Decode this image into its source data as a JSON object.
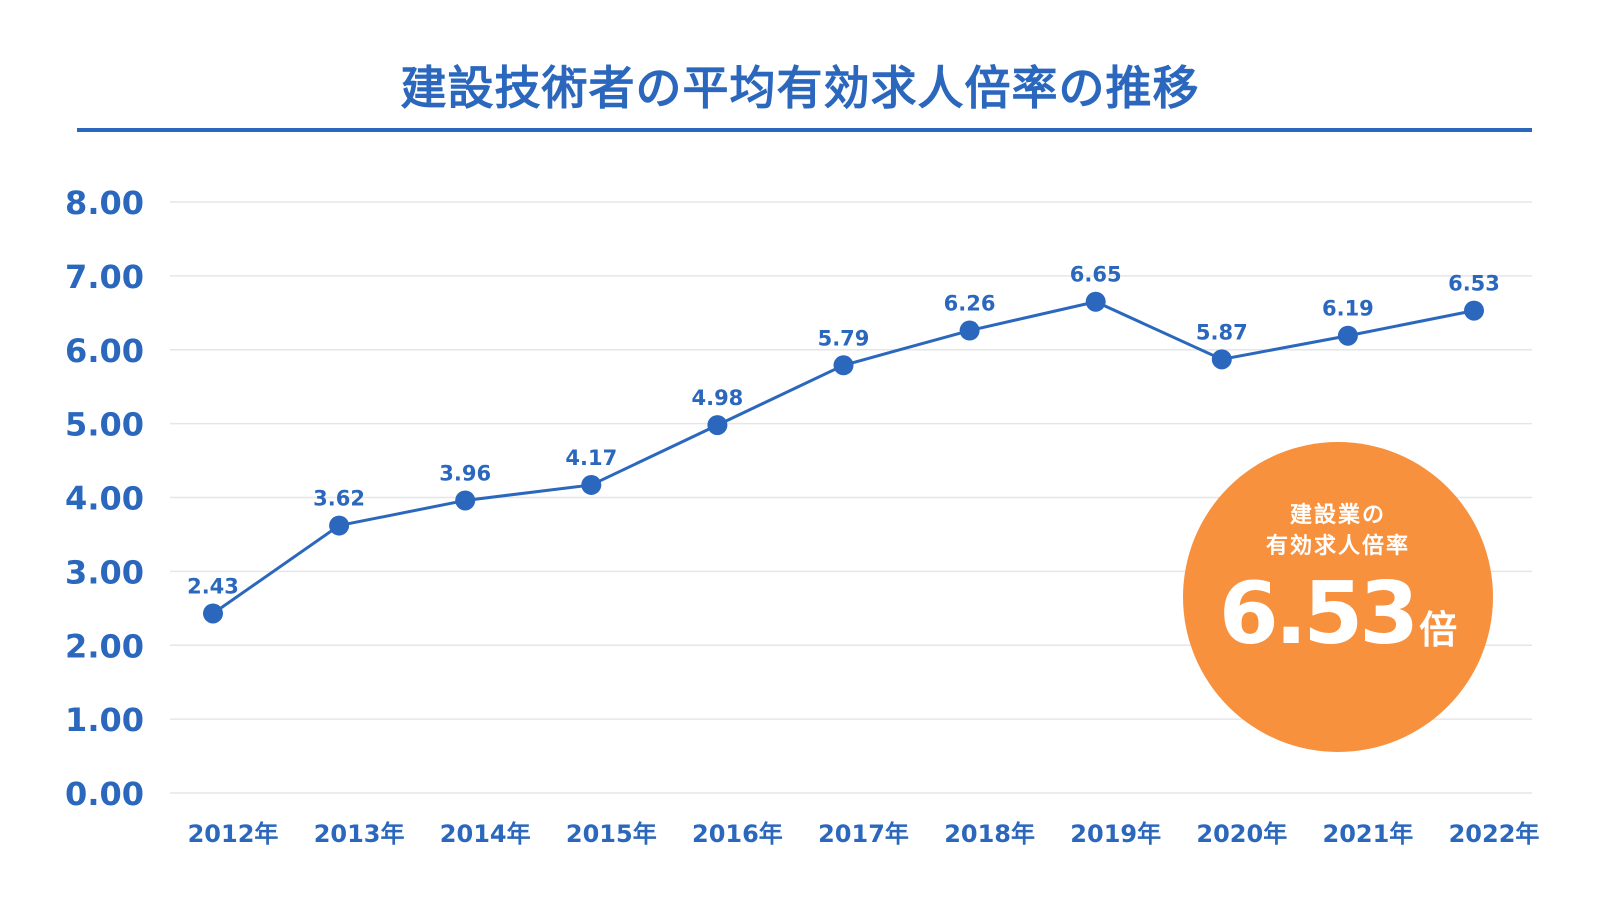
{
  "title": "建設技術者の平均有効求人倍率の推移",
  "colors": {
    "primary": "#2b68bd",
    "accent": "#f7913d",
    "grid": "#e6e6e6"
  },
  "badge": {
    "line1": "建設業の",
    "line2": "有効求人倍率",
    "value": "6.53",
    "unit": "倍"
  },
  "chart_data": {
    "type": "line",
    "title": "建設技術者の平均有効求人倍率の推移",
    "xlabel": "",
    "ylabel": "",
    "ylim": [
      0,
      8
    ],
    "grid": true,
    "yticks": [
      "0.00",
      "1.00",
      "2.00",
      "3.00",
      "4.00",
      "5.00",
      "6.00",
      "7.00",
      "8.00"
    ],
    "categories": [
      "2012年",
      "2013年",
      "2014年",
      "2015年",
      "2016年",
      "2017年",
      "2018年",
      "2019年",
      "2020年",
      "2021年",
      "2022年"
    ],
    "values": [
      2.43,
      3.62,
      3.96,
      4.17,
      4.98,
      5.79,
      6.26,
      6.65,
      5.87,
      6.19,
      6.53
    ],
    "labels": [
      "2.43",
      "3.62",
      "3.96",
      "4.17",
      "4.98",
      "5.79",
      "6.26",
      "6.65",
      "5.87",
      "6.19",
      "6.53"
    ]
  }
}
